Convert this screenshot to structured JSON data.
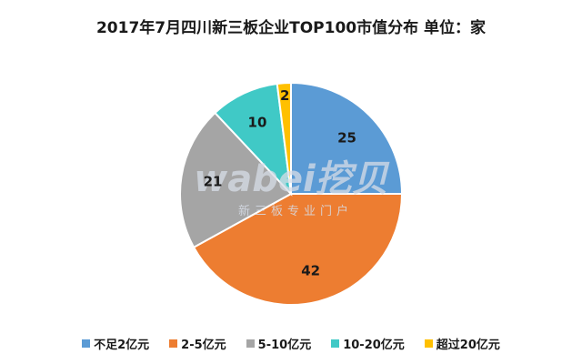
{
  "chart_data": {
    "type": "pie",
    "title": "2017年7月四川新三板企业TOP100市值分布 单位：家",
    "categories": [
      "不足2亿元",
      "2-5亿元",
      "5-10亿元",
      "10-20亿元",
      "超过20亿元"
    ],
    "values": [
      25,
      42,
      21,
      10,
      2
    ],
    "colors": [
      "#5b9bd5",
      "#ed7d31",
      "#a5a5a5",
      "#40c9c6",
      "#ffc000"
    ],
    "legend_position": "bottom",
    "start": "12 o'clock, clockwise"
  },
  "watermark": {
    "brand": "wabei挖贝",
    "tagline": "新三板专业门户"
  }
}
